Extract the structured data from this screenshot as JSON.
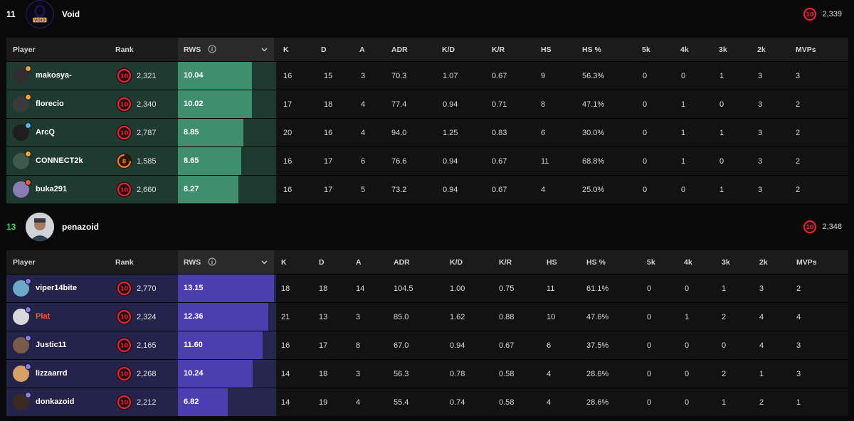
{
  "teams": [
    {
      "score": "11",
      "name": "Void",
      "elo": "2,339",
      "elo_level": "10",
      "columns": [
        "Player",
        "Rank",
        "RWS",
        "K",
        "D",
        "A",
        "ADR",
        "K/D",
        "K/R",
        "HS",
        "HS %",
        "5k",
        "4k",
        "3k",
        "2k",
        "MVPs"
      ],
      "players": [
        {
          "name": "makosya-",
          "level": "10",
          "elo": "2,321",
          "rws": "10.04",
          "rws_pct": 0.77,
          "k": "16",
          "d": "15",
          "a": "3",
          "adr": "70.3",
          "kd": "1.07",
          "kr": "0.67",
          "hs": "9",
          "hsp": "56.3%",
          "k5": "0",
          "k4": "0",
          "k3": "1",
          "k2": "3",
          "mvps": "3"
        },
        {
          "name": "florecio",
          "level": "10",
          "elo": "2,340",
          "rws": "10.02",
          "rws_pct": 0.77,
          "k": "17",
          "d": "18",
          "a": "4",
          "adr": "77.4",
          "kd": "0.94",
          "kr": "0.71",
          "hs": "8",
          "hsp": "47.1%",
          "k5": "0",
          "k4": "1",
          "k3": "0",
          "k2": "3",
          "mvps": "2"
        },
        {
          "name": "ArcQ",
          "level": "10",
          "elo": "2,787",
          "rws": "8.85",
          "rws_pct": 0.68,
          "k": "20",
          "d": "16",
          "a": "4",
          "adr": "94.0",
          "kd": "1.25",
          "kr": "0.83",
          "hs": "6",
          "hsp": "30.0%",
          "k5": "0",
          "k4": "1",
          "k3": "1",
          "k2": "3",
          "mvps": "2"
        },
        {
          "name": "CONNECT2k",
          "level": "8",
          "elo": "1,585",
          "rws": "8.65",
          "rws_pct": 0.66,
          "k": "16",
          "d": "17",
          "a": "6",
          "adr": "76.6",
          "kd": "0.94",
          "kr": "0.67",
          "hs": "11",
          "hsp": "68.8%",
          "k5": "0",
          "k4": "1",
          "k3": "0",
          "k2": "3",
          "mvps": "2"
        },
        {
          "name": "buka291",
          "level": "10",
          "elo": "2,660",
          "rws": "8.27",
          "rws_pct": 0.63,
          "k": "16",
          "d": "17",
          "a": "5",
          "adr": "73.2",
          "kd": "0.94",
          "kr": "0.67",
          "hs": "4",
          "hsp": "25.0%",
          "k5": "0",
          "k4": "0",
          "k3": "1",
          "k2": "3",
          "mvps": "2"
        }
      ]
    },
    {
      "score": "13",
      "name": "penazoid",
      "elo": "2,348",
      "elo_level": "10",
      "columns": [
        "Player",
        "Rank",
        "RWS",
        "K",
        "D",
        "A",
        "ADR",
        "K/D",
        "K/R",
        "HS",
        "HS %",
        "5k",
        "4k",
        "3k",
        "2k",
        "MVPs"
      ],
      "players": [
        {
          "name": "viper14bite",
          "level": "10",
          "elo": "2,770",
          "rws": "13.15",
          "rws_pct": 1.0,
          "k": "18",
          "d": "18",
          "a": "14",
          "adr": "104.5",
          "kd": "1.00",
          "kr": "0.75",
          "hs": "11",
          "hsp": "61.1%",
          "k5": "0",
          "k4": "0",
          "k3": "1",
          "k2": "3",
          "mvps": "2"
        },
        {
          "name": "Plat",
          "level": "10",
          "elo": "2,324",
          "rws": "12.36",
          "rws_pct": 0.94,
          "k": "21",
          "d": "13",
          "a": "3",
          "adr": "85.0",
          "kd": "1.62",
          "kr": "0.88",
          "hs": "10",
          "hsp": "47.6%",
          "k5": "0",
          "k4": "1",
          "k3": "2",
          "k2": "4",
          "mvps": "4"
        },
        {
          "name": "Justic11",
          "level": "10",
          "elo": "2,165",
          "rws": "11.60",
          "rws_pct": 0.88,
          "k": "16",
          "d": "17",
          "a": "8",
          "adr": "67.0",
          "kd": "0.94",
          "kr": "0.67",
          "hs": "6",
          "hsp": "37.5%",
          "k5": "0",
          "k4": "0",
          "k3": "0",
          "k2": "4",
          "mvps": "3"
        },
        {
          "name": "lizzaarrd",
          "level": "10",
          "elo": "2,268",
          "rws": "10.24",
          "rws_pct": 0.78,
          "k": "14",
          "d": "18",
          "a": "3",
          "adr": "56.3",
          "kd": "0.78",
          "kr": "0.58",
          "hs": "4",
          "hsp": "28.6%",
          "k5": "0",
          "k4": "0",
          "k3": "2",
          "k2": "1",
          "mvps": "3"
        },
        {
          "name": "donkazoid",
          "level": "10",
          "elo": "2,212",
          "rws": "6.82",
          "rws_pct": 0.52,
          "k": "14",
          "d": "19",
          "a": "4",
          "adr": "55.4",
          "kd": "0.74",
          "kr": "0.58",
          "hs": "4",
          "hsp": "28.6%",
          "k5": "0",
          "k4": "0",
          "k3": "1",
          "k2": "2",
          "mvps": "1"
        }
      ]
    }
  ],
  "icons": {
    "rws_info": "info-icon",
    "sort": "chevron-down-icon"
  }
}
